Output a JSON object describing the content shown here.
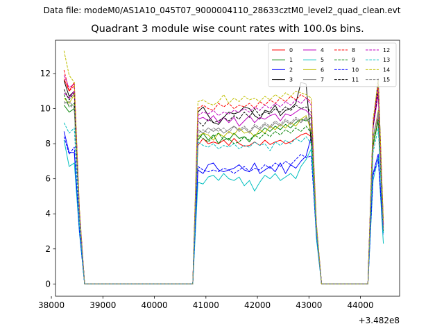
{
  "chart_data": {
    "type": "line",
    "suptitle": "Data file: modeM0/AS1A10_045T07_9000004110_28633cztM0_level2_quad_clean.evt",
    "title": "Quadrant 3 module wise count rates with 100.0s bins.",
    "xlabel": "",
    "ylabel": "",
    "x_offset_label": "+3.482e8",
    "xlim": [
      38080,
      44760
    ],
    "ylim": [
      -0.7,
      13.9
    ],
    "xticks": [
      38000,
      39000,
      40000,
      41000,
      42000,
      43000,
      44000
    ],
    "xtick_labels": [
      "38000",
      "39000",
      "40000",
      "41000",
      "42000",
      "43000",
      "44000"
    ],
    "yticks": [
      0,
      2,
      4,
      6,
      8,
      10,
      12
    ],
    "ytick_labels": [
      "0",
      "2",
      "4",
      "6",
      "8",
      "10",
      "12"
    ],
    "legend_position": "upper right",
    "legend_columns": 4,
    "x": [
      38245,
      38345,
      38445,
      38545,
      38645,
      38745,
      38845,
      38945,
      39045,
      39145,
      39245,
      39345,
      39445,
      39545,
      39645,
      39745,
      39845,
      39945,
      40045,
      40145,
      40245,
      40345,
      40445,
      40545,
      40645,
      40745,
      40845,
      40945,
      41045,
      41145,
      41245,
      41345,
      41445,
      41545,
      41645,
      41745,
      41845,
      41945,
      42045,
      42145,
      42245,
      42345,
      42445,
      42545,
      42645,
      42745,
      42845,
      42945,
      43045,
      43145,
      43245,
      43345,
      43445,
      43545,
      43645,
      43745,
      43845,
      43945,
      44045,
      44145,
      44245,
      44345,
      44445
    ],
    "series": [
      {
        "name": "0",
        "color": "#ff0000",
        "dash": false,
        "values": [
          11.7,
          11.0,
          11.5,
          4.0,
          0,
          0,
          0,
          0,
          0,
          0,
          0,
          0,
          0,
          0,
          0,
          0,
          0,
          0,
          0,
          0,
          0,
          0,
          0,
          0,
          0,
          0,
          7.9,
          8.3,
          8.0,
          8.1,
          8.0,
          8.2,
          7.9,
          8.3,
          8.0,
          7.85,
          7.9,
          8.1,
          7.9,
          8.2,
          7.95,
          8.1,
          8.2,
          8.0,
          8.1,
          8.3,
          8.5,
          8.6,
          8.4,
          3.0,
          0,
          0,
          0,
          0,
          0,
          0,
          0,
          0,
          0,
          0,
          7.8,
          9.5,
          3.2
        ]
      },
      {
        "name": "1",
        "color": "#008000",
        "dash": false,
        "values": [
          10.2,
          9.8,
          10.0,
          4.0,
          0,
          0,
          0,
          0,
          0,
          0,
          0,
          0,
          0,
          0,
          0,
          0,
          0,
          0,
          0,
          0,
          0,
          0,
          0,
          0,
          0,
          0,
          8.2,
          8.6,
          8.2,
          8.5,
          8.0,
          8.4,
          8.2,
          8.6,
          8.3,
          8.4,
          8.1,
          8.5,
          8.6,
          8.9,
          8.7,
          9.0,
          8.8,
          9.1,
          8.9,
          9.2,
          9.4,
          9.3,
          9.5,
          3.1,
          0,
          0,
          0,
          0,
          0,
          0,
          0,
          0,
          0,
          0,
          7.9,
          9.3,
          3.1
        ]
      },
      {
        "name": "2",
        "color": "#0000ff",
        "dash": false,
        "values": [
          8.7,
          7.5,
          7.5,
          3.0,
          0,
          0,
          0,
          0,
          0,
          0,
          0,
          0,
          0,
          0,
          0,
          0,
          0,
          0,
          0,
          0,
          0,
          0,
          0,
          0,
          0,
          0,
          6.5,
          6.3,
          6.8,
          6.9,
          6.5,
          6.4,
          6.5,
          6.6,
          6.8,
          6.5,
          6.4,
          6.9,
          6.3,
          6.5,
          6.7,
          6.4,
          6.9,
          6.3,
          6.8,
          6.6,
          7.0,
          7.3,
          8.4,
          2.8,
          0,
          0,
          0,
          0,
          0,
          0,
          0,
          0,
          0,
          0,
          6.3,
          7.4,
          2.9
        ]
      },
      {
        "name": "3",
        "color": "#000000",
        "dash": false,
        "values": [
          11.6,
          10.7,
          11.0,
          4.1,
          0,
          0,
          0,
          0,
          0,
          0,
          0,
          0,
          0,
          0,
          0,
          0,
          0,
          0,
          0,
          0,
          0,
          0,
          0,
          0,
          0,
          0,
          9.8,
          10.1,
          9.6,
          9.2,
          9.1,
          9.5,
          9.8,
          9.7,
          9.8,
          10.1,
          10.0,
          9.6,
          9.4,
          9.9,
          9.8,
          10.2,
          9.6,
          9.9,
          10.0,
          10.3,
          11.5,
          11.4,
          8.0,
          3.3,
          0,
          0,
          0,
          0,
          0,
          0,
          0,
          0,
          0,
          0,
          9.0,
          11.7,
          3.4
        ]
      },
      {
        "name": "4",
        "color": "#bf00bf",
        "dash": false,
        "values": [
          10.9,
          10.6,
          11.0,
          4.0,
          0,
          0,
          0,
          0,
          0,
          0,
          0,
          0,
          0,
          0,
          0,
          0,
          0,
          0,
          0,
          0,
          0,
          0,
          0,
          0,
          0,
          0,
          9.4,
          9.5,
          9.3,
          9.6,
          9.2,
          9.5,
          9.2,
          9.5,
          9.0,
          9.3,
          9.6,
          9.2,
          9.5,
          9.4,
          9.6,
          9.7,
          9.3,
          9.7,
          9.6,
          9.8,
          10.0,
          9.9,
          9.6,
          3.3,
          0,
          0,
          0,
          0,
          0,
          0,
          0,
          0,
          0,
          0,
          8.9,
          10.8,
          3.3
        ]
      },
      {
        "name": "5",
        "color": "#00bfbf",
        "dash": false,
        "values": [
          8.2,
          6.7,
          6.9,
          2.9,
          0,
          0,
          0,
          0,
          0,
          0,
          0,
          0,
          0,
          0,
          0,
          0,
          0,
          0,
          0,
          0,
          0,
          0,
          0,
          0,
          0,
          0,
          5.8,
          5.7,
          6.1,
          6.2,
          5.9,
          6.3,
          6.0,
          5.9,
          6.1,
          5.6,
          5.9,
          5.3,
          5.8,
          6.2,
          6.0,
          6.3,
          5.9,
          6.1,
          6.3,
          6.0,
          6.7,
          7.1,
          7.7,
          2.6,
          0,
          0,
          0,
          0,
          0,
          0,
          0,
          0,
          0,
          0,
          5.9,
          7.2,
          2.3
        ]
      },
      {
        "name": "6",
        "color": "#bfbf00",
        "dash": false,
        "values": [
          10.6,
          10.3,
          10.8,
          4.0,
          0,
          0,
          0,
          0,
          0,
          0,
          0,
          0,
          0,
          0,
          0,
          0,
          0,
          0,
          0,
          0,
          0,
          0,
          0,
          0,
          0,
          0,
          8.4,
          8.6,
          8.5,
          8.2,
          8.6,
          8.4,
          8.7,
          8.5,
          8.9,
          8.6,
          8.7,
          8.4,
          8.8,
          8.6,
          9.0,
          8.8,
          9.1,
          8.9,
          9.2,
          9.0,
          9.4,
          9.6,
          8.7,
          3.1,
          0,
          0,
          0,
          0,
          0,
          0,
          0,
          0,
          0,
          0,
          8.2,
          9.9,
          3.2
        ]
      },
      {
        "name": "7",
        "color": "#808080",
        "dash": false,
        "values": [
          10.3,
          10.4,
          10.1,
          3.9,
          0,
          0,
          0,
          0,
          0,
          0,
          0,
          0,
          0,
          0,
          0,
          0,
          0,
          0,
          0,
          0,
          0,
          0,
          0,
          0,
          0,
          0,
          8.8,
          8.6,
          8.9,
          8.7,
          8.9,
          8.6,
          8.8,
          9.0,
          8.7,
          8.9,
          8.6,
          9.0,
          8.8,
          9.1,
          8.9,
          9.2,
          9.0,
          9.3,
          9.1,
          9.4,
          9.2,
          9.5,
          9.0,
          3.2,
          0,
          0,
          0,
          0,
          0,
          0,
          0,
          0,
          0,
          0,
          8.4,
          9.8,
          3.2
        ]
      },
      {
        "name": "8",
        "color": "#ff0000",
        "dash": true,
        "values": [
          12.2,
          11.0,
          11.3,
          4.2,
          0,
          0,
          0,
          0,
          0,
          0,
          0,
          0,
          0,
          0,
          0,
          0,
          0,
          0,
          0,
          0,
          0,
          0,
          0,
          0,
          0,
          0,
          10.0,
          10.2,
          10.0,
          9.9,
          10.3,
          10.1,
          10.3,
          10.0,
          10.2,
          10.1,
          10.3,
          10.0,
          10.4,
          10.2,
          10.5,
          10.3,
          10.6,
          10.4,
          10.7,
          10.5,
          10.8,
          10.6,
          10.4,
          3.4,
          0,
          0,
          0,
          0,
          0,
          0,
          0,
          0,
          0,
          0,
          9.1,
          11.3,
          3.4
        ]
      },
      {
        "name": "9",
        "color": "#008000",
        "dash": true,
        "values": [
          10.8,
          10.1,
          10.3,
          3.9,
          0,
          0,
          0,
          0,
          0,
          0,
          0,
          0,
          0,
          0,
          0,
          0,
          0,
          0,
          0,
          0,
          0,
          0,
          0,
          0,
          0,
          0,
          8.5,
          8.3,
          8.1,
          8.4,
          8.6,
          8.2,
          8.3,
          8.0,
          8.1,
          8.4,
          8.2,
          8.5,
          8.3,
          8.6,
          8.4,
          8.7,
          8.5,
          8.8,
          8.6,
          8.9,
          8.7,
          9.0,
          8.6,
          3.1,
          0,
          0,
          0,
          0,
          0,
          0,
          0,
          0,
          0,
          0,
          8.0,
          9.4,
          3.0
        ]
      },
      {
        "name": "10",
        "color": "#0000ff",
        "dash": true,
        "values": [
          8.4,
          7.4,
          7.8,
          3.0,
          0,
          0,
          0,
          0,
          0,
          0,
          0,
          0,
          0,
          0,
          0,
          0,
          0,
          0,
          0,
          0,
          0,
          0,
          0,
          0,
          0,
          0,
          6.7,
          6.5,
          6.4,
          6.5,
          6.4,
          6.6,
          6.5,
          6.3,
          6.5,
          6.7,
          6.4,
          6.6,
          6.5,
          6.8,
          6.6,
          6.9,
          6.7,
          7.0,
          6.8,
          7.1,
          7.4,
          7.2,
          7.3,
          2.8,
          0,
          0,
          0,
          0,
          0,
          0,
          0,
          0,
          0,
          0,
          6.2,
          7.1,
          2.8
        ]
      },
      {
        "name": "11",
        "color": "#000000",
        "dash": true,
        "values": [
          11.1,
          10.5,
          10.9,
          4.0,
          0,
          0,
          0,
          0,
          0,
          0,
          0,
          0,
          0,
          0,
          0,
          0,
          0,
          0,
          0,
          0,
          0,
          0,
          0,
          0,
          0,
          0,
          9.3,
          9.0,
          9.4,
          9.2,
          9.3,
          9.5,
          9.3,
          9.6,
          9.4,
          9.8,
          9.5,
          10.0,
          9.6,
          9.8,
          9.7,
          10.0,
          9.8,
          10.1,
          9.9,
          10.2,
          10.0,
          10.1,
          9.8,
          3.3,
          0,
          0,
          0,
          0,
          0,
          0,
          0,
          0,
          0,
          0,
          9.0,
          11.0,
          3.3
        ]
      },
      {
        "name": "12",
        "color": "#bf00bf",
        "dash": true,
        "values": [
          11.9,
          11.2,
          11.4,
          4.2,
          0,
          0,
          0,
          0,
          0,
          0,
          0,
          0,
          0,
          0,
          0,
          0,
          0,
          0,
          0,
          0,
          0,
          0,
          0,
          0,
          0,
          0,
          9.6,
          9.8,
          9.7,
          9.9,
          9.6,
          9.8,
          9.7,
          9.9,
          9.8,
          10.0,
          9.8,
          10.1,
          9.9,
          10.2,
          10.0,
          10.3,
          10.1,
          10.4,
          10.2,
          10.5,
          10.3,
          10.6,
          10.2,
          3.4,
          0,
          0,
          0,
          0,
          0,
          0,
          0,
          0,
          0,
          0,
          9.2,
          11.2,
          3.4
        ]
      },
      {
        "name": "13",
        "color": "#00bfbf",
        "dash": true,
        "values": [
          9.2,
          8.6,
          8.9,
          3.4,
          0,
          0,
          0,
          0,
          0,
          0,
          0,
          0,
          0,
          0,
          0,
          0,
          0,
          0,
          0,
          0,
          0,
          0,
          0,
          0,
          0,
          0,
          8.1,
          7.9,
          7.8,
          8.0,
          7.7,
          7.9,
          7.8,
          8.0,
          7.7,
          7.9,
          7.8,
          8.1,
          7.9,
          8.0,
          7.6,
          8.1,
          7.9,
          8.2,
          8.0,
          8.3,
          8.1,
          8.4,
          8.0,
          3.0,
          0,
          0,
          0,
          0,
          0,
          0,
          0,
          0,
          0,
          0,
          7.5,
          8.9,
          2.9
        ]
      },
      {
        "name": "14",
        "color": "#bfbf00",
        "dash": true,
        "values": [
          13.3,
          11.9,
          11.5,
          4.3,
          0,
          0,
          0,
          0,
          0,
          0,
          0,
          0,
          0,
          0,
          0,
          0,
          0,
          0,
          0,
          0,
          0,
          0,
          0,
          0,
          0,
          0,
          10.4,
          10.5,
          10.3,
          10.2,
          10.4,
          10.8,
          10.3,
          10.6,
          10.4,
          10.7,
          10.5,
          10.6,
          10.4,
          10.7,
          10.5,
          10.8,
          10.6,
          10.9,
          10.7,
          11.0,
          10.9,
          10.8,
          10.6,
          3.5,
          0,
          0,
          0,
          0,
          0,
          0,
          0,
          0,
          0,
          0,
          9.4,
          11.6,
          3.6
        ]
      },
      {
        "name": "15",
        "color": "#808080",
        "dash": true,
        "values": [
          10.4,
          10.2,
          10.0,
          3.9,
          0,
          0,
          0,
          0,
          0,
          0,
          0,
          0,
          0,
          0,
          0,
          0,
          0,
          0,
          0,
          0,
          0,
          0,
          0,
          0,
          0,
          0,
          8.6,
          8.8,
          8.6,
          8.9,
          8.7,
          8.9,
          8.6,
          9.0,
          8.8,
          9.0,
          8.7,
          9.1,
          8.9,
          9.2,
          9.0,
          9.3,
          9.1,
          9.4,
          9.2,
          9.5,
          9.3,
          9.4,
          9.1,
          3.2,
          0,
          0,
          0,
          0,
          0,
          0,
          0,
          0,
          0,
          0,
          8.3,
          9.7,
          3.1
        ]
      }
    ]
  }
}
